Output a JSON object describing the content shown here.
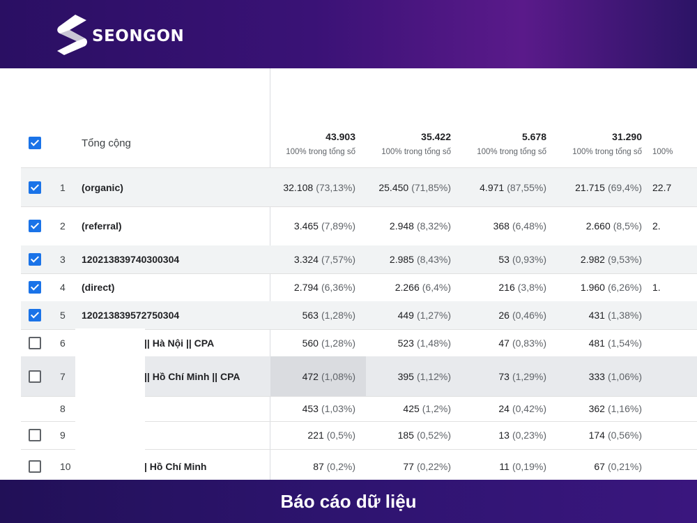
{
  "brand": {
    "name": "SEONGON"
  },
  "footer": {
    "title": "Báo cáo dữ liệu"
  },
  "table": {
    "total_label": "Tổng cộng",
    "totals": [
      {
        "value": "43.903",
        "sub": "100% trong tổng số"
      },
      {
        "value": "35.422",
        "sub": "100% trong tổng số"
      },
      {
        "value": "5.678",
        "sub": "100% trong tổng số"
      },
      {
        "value": "31.290",
        "sub": "100% trong tổng số"
      },
      {
        "value": "",
        "sub": "100%"
      }
    ],
    "rows": [
      {
        "index": "1",
        "label": "(organic)",
        "checked": true,
        "cells": [
          [
            "32.108",
            "(73,13%)"
          ],
          [
            "25.450",
            "(71,85%)"
          ],
          [
            "4.971",
            "(87,55%)"
          ],
          [
            "21.715",
            "(69,4%)"
          ]
        ],
        "partial": "22.7"
      },
      {
        "index": "2",
        "label": "(referral)",
        "checked": true,
        "cells": [
          [
            "3.465",
            "(7,89%)"
          ],
          [
            "2.948",
            "(8,32%)"
          ],
          [
            "368",
            "(6,48%)"
          ],
          [
            "2.660",
            "(8,5%)"
          ]
        ],
        "partial": "2."
      },
      {
        "index": "3",
        "label": "120213839740300304",
        "checked": true,
        "cells": [
          [
            "3.324",
            "(7,57%)"
          ],
          [
            "2.985",
            "(8,43%)"
          ],
          [
            "53",
            "(0,93%)"
          ],
          [
            "2.982",
            "(9,53%)"
          ]
        ],
        "partial": ""
      },
      {
        "index": "4",
        "label": "(direct)",
        "checked": true,
        "cells": [
          [
            "2.794",
            "(6,36%)"
          ],
          [
            "2.266",
            "(6,4%)"
          ],
          [
            "216",
            "(3,8%)"
          ],
          [
            "1.960",
            "(6,26%)"
          ]
        ],
        "partial": "1."
      },
      {
        "index": "5",
        "label": "120213839572750304",
        "checked": true,
        "cells": [
          [
            "563",
            "(1,28%)"
          ],
          [
            "449",
            "(1,27%)"
          ],
          [
            "26",
            "(0,46%)"
          ],
          [
            "431",
            "(1,38%)"
          ]
        ],
        "partial": ""
      },
      {
        "index": "6",
        "label": "|| Hà Nội || CPA",
        "checked": false,
        "cells": [
          [
            "560",
            "(1,28%)"
          ],
          [
            "523",
            "(1,48%)"
          ],
          [
            "47",
            "(0,83%)"
          ],
          [
            "481",
            "(1,54%)"
          ]
        ],
        "partial": ""
      },
      {
        "index": "7",
        "label": "|| Hồ Chí Minh || CPA",
        "checked": false,
        "cells": [
          [
            "472",
            "(1,08%)"
          ],
          [
            "395",
            "(1,12%)"
          ],
          [
            "73",
            "(1,29%)"
          ],
          [
            "333",
            "(1,06%)"
          ]
        ],
        "partial": ""
      },
      {
        "index": "8",
        "label": "",
        "checked": null,
        "cells": [
          [
            "453",
            "(1,03%)"
          ],
          [
            "425",
            "(1,2%)"
          ],
          [
            "24",
            "(0,42%)"
          ],
          [
            "362",
            "(1,16%)"
          ]
        ],
        "partial": ""
      },
      {
        "index": "9",
        "label": "",
        "checked": false,
        "cells": [
          [
            "221",
            "(0,5%)"
          ],
          [
            "185",
            "(0,52%)"
          ],
          [
            "13",
            "(0,23%)"
          ],
          [
            "174",
            "(0,56%)"
          ]
        ],
        "partial": ""
      },
      {
        "index": "10",
        "label": "| Hồ Chí Minh",
        "checked": false,
        "cells": [
          [
            "87",
            "(0,2%)"
          ],
          [
            "77",
            "(0,22%)"
          ],
          [
            "11",
            "(0,19%)"
          ],
          [
            "67",
            "(0,21%)"
          ]
        ],
        "partial": ""
      }
    ]
  }
}
